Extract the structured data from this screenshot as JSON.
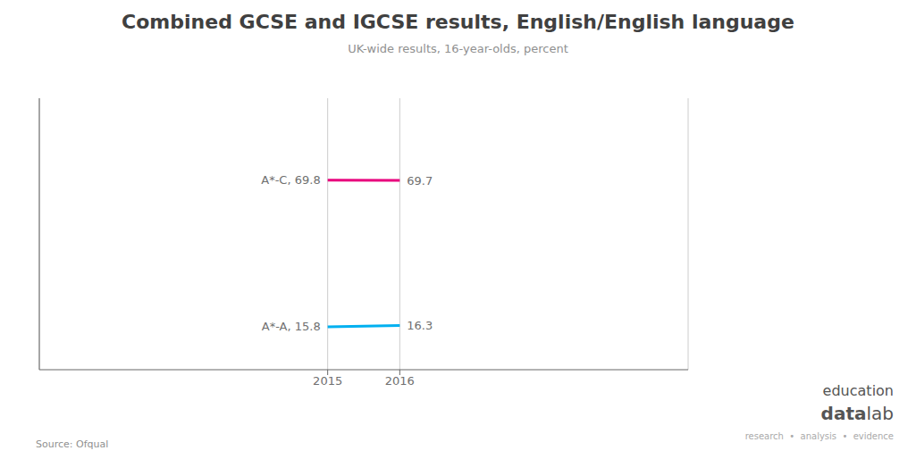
{
  "chart_data": {
    "type": "line",
    "title": "Combined GCSE and IGCSE results, English/English language",
    "subtitle": "UK-wide results, 16-year-olds, percent",
    "source": "Source: Ofqual",
    "x": [
      2015,
      2016
    ],
    "series": [
      {
        "name": "A*-C",
        "color": "#e8007d",
        "values": [
          69.8,
          69.7
        ],
        "value_labels": [
          "A*-C, 69.8",
          "69.7"
        ]
      },
      {
        "name": "A*-A",
        "color": "#00b0f0",
        "values": [
          15.8,
          16.3
        ],
        "value_labels": [
          "A*-A, 15.8",
          "16.3"
        ]
      }
    ],
    "xlim": [
      2011.0,
      2020.0
    ],
    "ylim": [
      0,
      100
    ],
    "xticks": [
      2015,
      2016
    ],
    "grid": true,
    "data_labels": true,
    "tick_labels": "x",
    "annotations": [
      "education",
      "data",
      "lab",
      "research  •  analysis  •  evidence"
    ]
  }
}
